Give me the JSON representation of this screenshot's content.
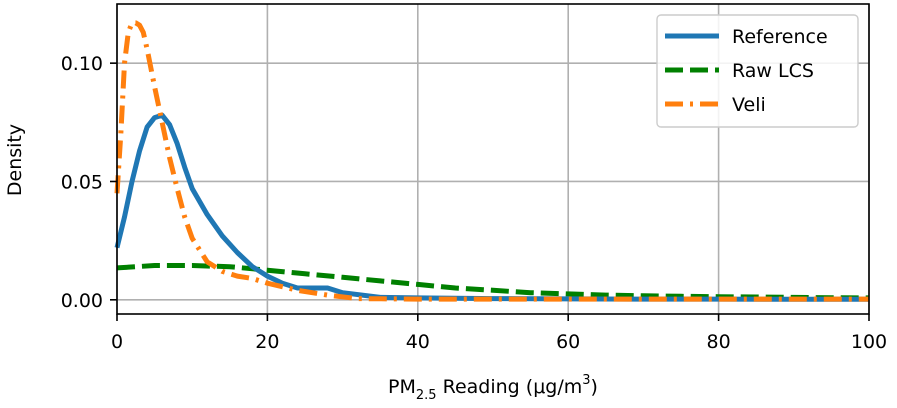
{
  "chart_data": {
    "type": "line",
    "title": "",
    "xlabel": {
      "prefix": "PM",
      "subscript": "2.5",
      "middle": " Reading (μg/m",
      "superscript": "3",
      "suffix": ")"
    },
    "ylabel": "Density",
    "xlim": [
      0,
      100
    ],
    "ylim": [
      -0.006,
      0.125
    ],
    "xticks": [
      0,
      20,
      40,
      60,
      80,
      100
    ],
    "xtick_labels": [
      "0",
      "20",
      "40",
      "60",
      "80",
      "100"
    ],
    "yticks": [
      0.0,
      0.05,
      0.1
    ],
    "ytick_labels": [
      "0.00",
      "0.05",
      "0.10"
    ],
    "grid": true,
    "legend_position": "top-right",
    "series": [
      {
        "name": "Reference",
        "color": "#1f77b4",
        "style": "solid",
        "x": [
          0,
          1,
          2,
          3,
          4,
          5,
          6,
          7,
          8,
          9,
          10,
          12,
          14,
          16,
          18,
          20,
          22,
          24,
          26,
          28,
          30,
          35,
          40,
          50,
          60,
          70,
          80,
          90,
          100
        ],
        "y": [
          0.022,
          0.035,
          0.05,
          0.063,
          0.073,
          0.077,
          0.078,
          0.074,
          0.066,
          0.056,
          0.047,
          0.036,
          0.027,
          0.02,
          0.014,
          0.01,
          0.007,
          0.005,
          0.005,
          0.005,
          0.003,
          0.001,
          0.0008,
          0.0005,
          0.0004,
          0.0003,
          0.0003,
          0.0002,
          0.0002
        ]
      },
      {
        "name": "Raw LCS",
        "color": "#008000",
        "style": "dashed",
        "x": [
          0,
          5,
          10,
          15,
          20,
          25,
          30,
          35,
          40,
          45,
          50,
          55,
          60,
          65,
          70,
          75,
          80,
          85,
          90,
          95,
          100
        ],
        "y": [
          0.0135,
          0.0145,
          0.0145,
          0.014,
          0.0125,
          0.011,
          0.0095,
          0.008,
          0.0065,
          0.005,
          0.004,
          0.003,
          0.0025,
          0.002,
          0.0017,
          0.0015,
          0.0013,
          0.0012,
          0.001,
          0.0009,
          0.0008
        ]
      },
      {
        "name": "Veli",
        "color": "#ff7f0e",
        "style": "dashdot",
        "x": [
          0,
          0.5,
          1,
          1.5,
          2,
          2.5,
          3,
          3.5,
          4,
          5,
          6,
          7,
          8,
          9,
          10,
          12,
          14,
          16,
          18,
          20,
          24,
          28,
          32,
          40,
          50,
          60,
          70,
          80,
          90,
          100
        ],
        "y": [
          0.045,
          0.07,
          0.1,
          0.113,
          0.117,
          0.117,
          0.116,
          0.113,
          0.106,
          0.09,
          0.075,
          0.06,
          0.047,
          0.035,
          0.026,
          0.016,
          0.012,
          0.01,
          0.009,
          0.007,
          0.004,
          0.002,
          0.0005,
          0.0003,
          0.0003,
          0.0003,
          0.0003,
          0.0003,
          0.0003,
          0.0003
        ]
      }
    ]
  }
}
